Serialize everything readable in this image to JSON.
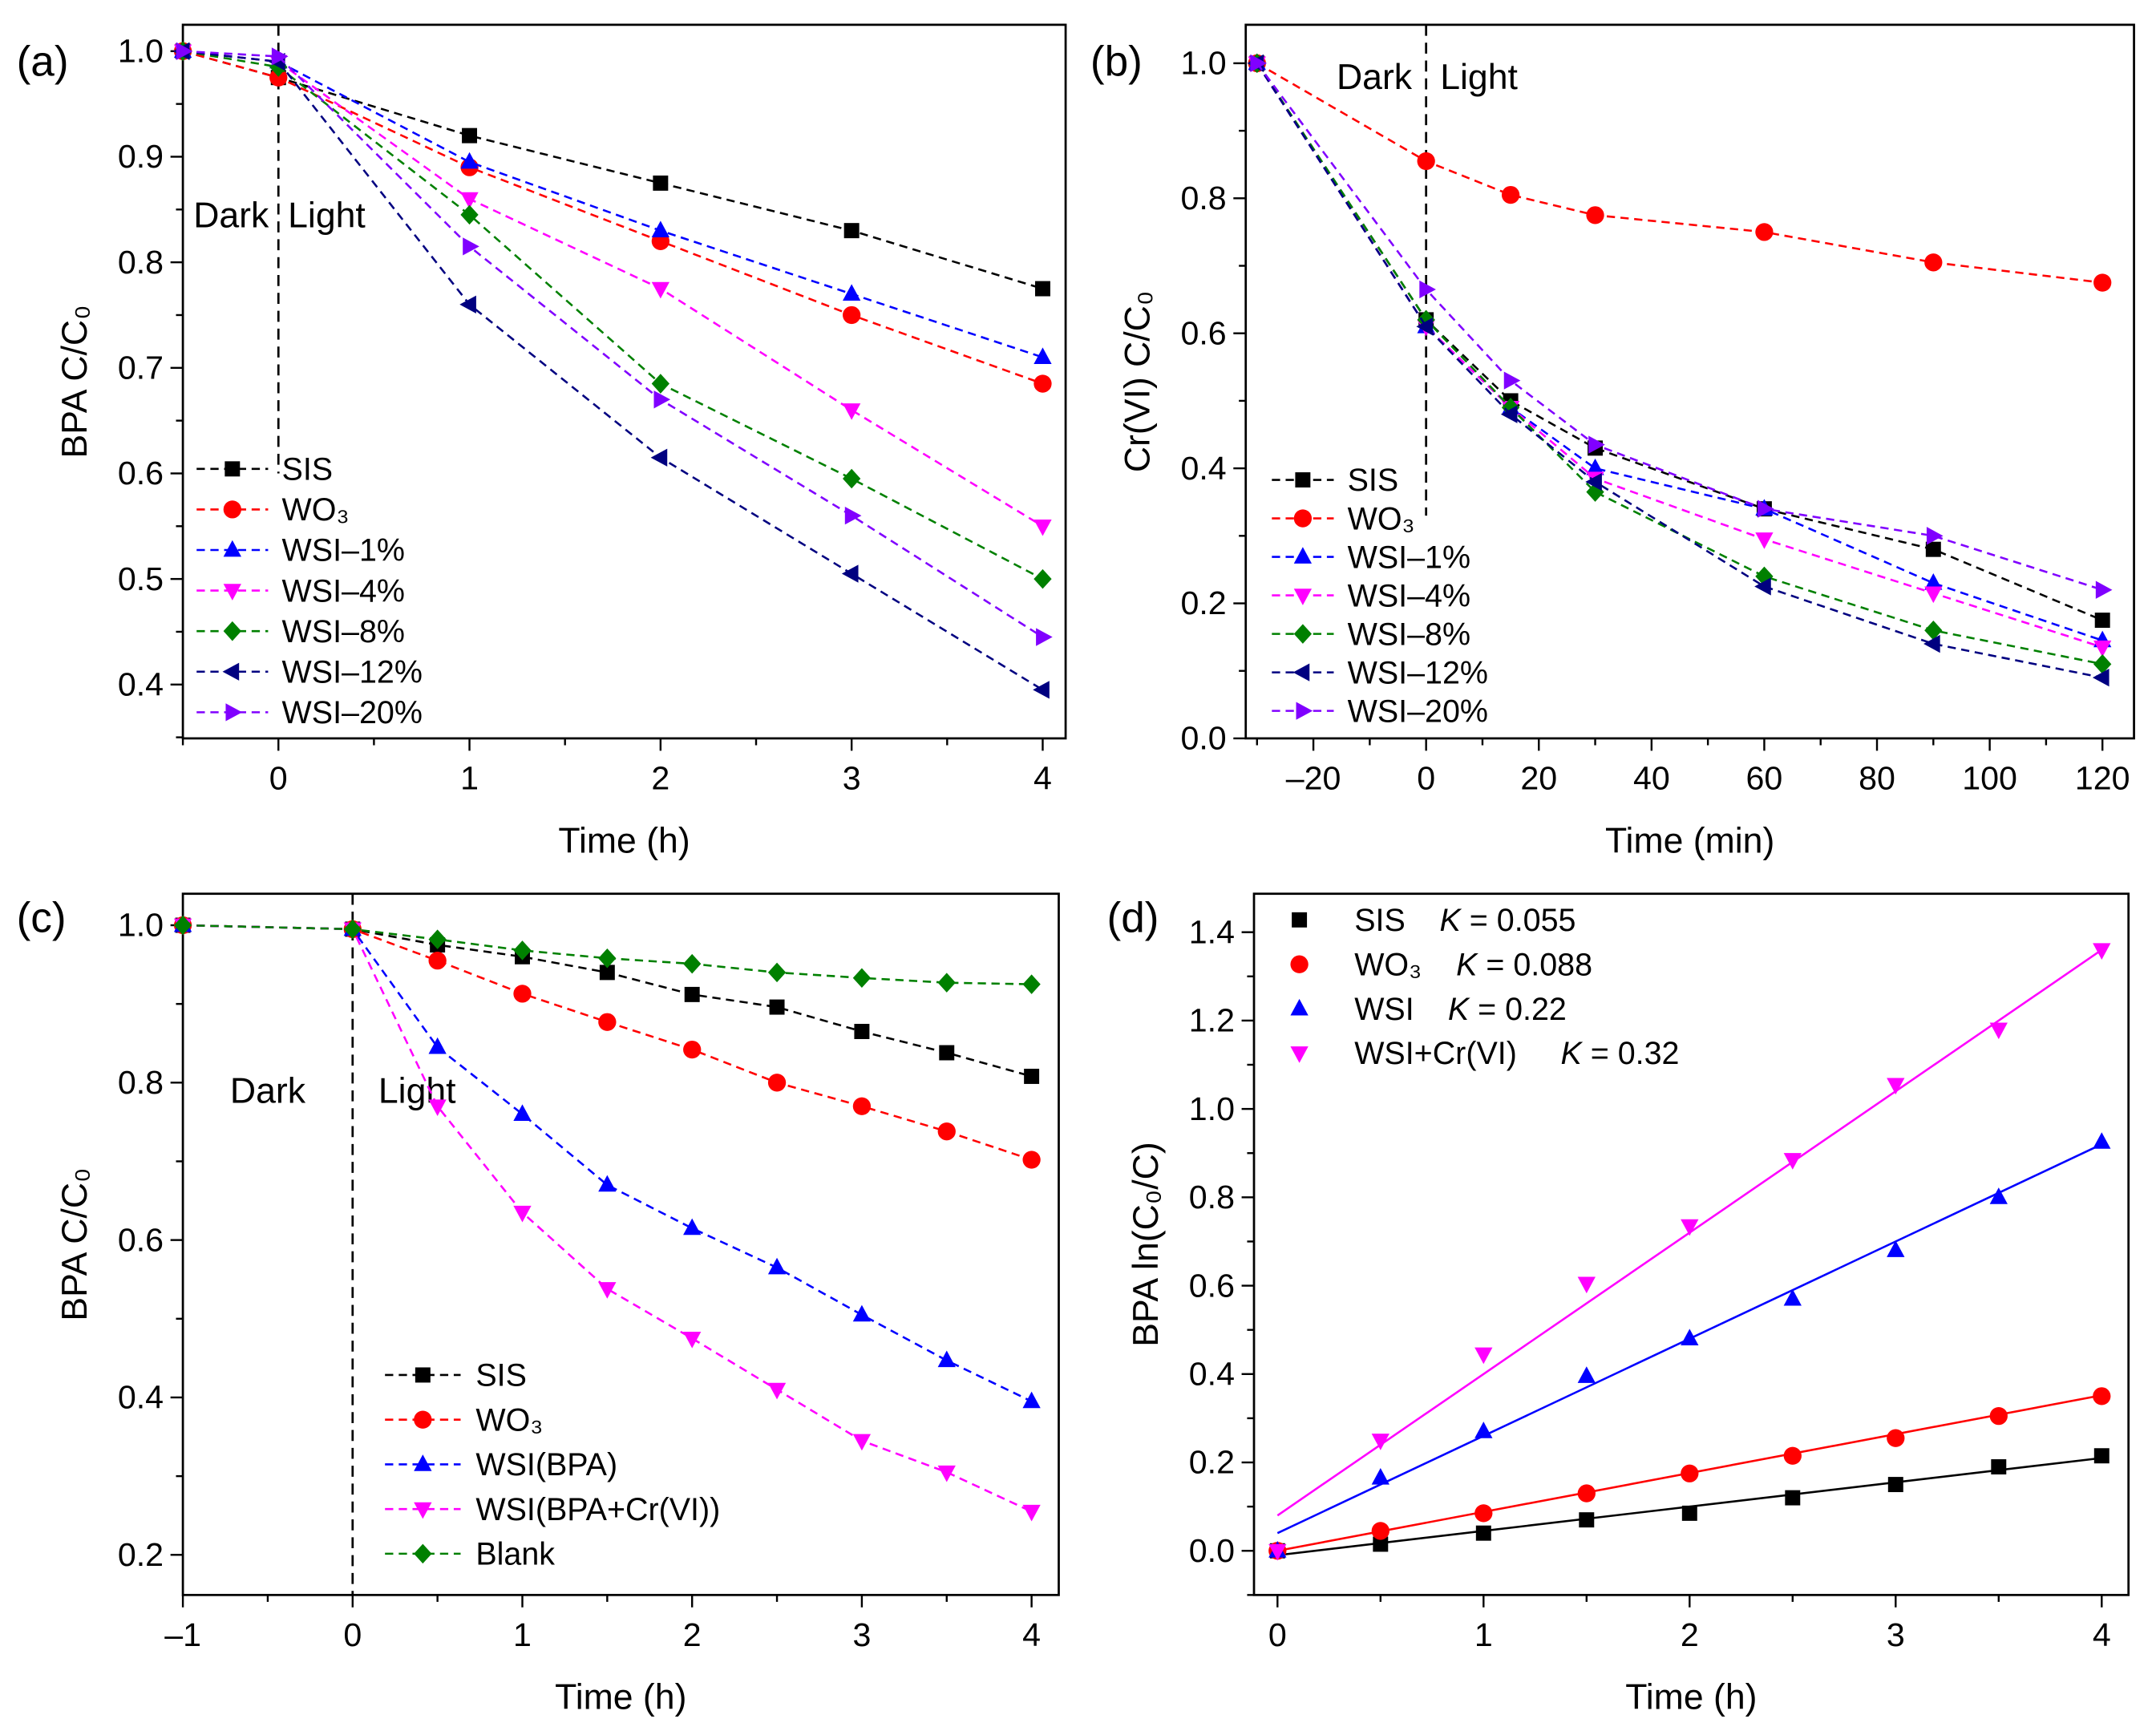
{
  "chart_data": [
    {
      "panel": "(a)",
      "type": "line",
      "xlabel": "Time (h)",
      "ylabel": "BPA C/C₀",
      "xlim": [
        -0.5,
        4.12
      ],
      "ylim": [
        0.349,
        1.025
      ],
      "xticks": [
        0,
        1,
        2,
        3,
        4
      ],
      "xminor": 0.5,
      "yticks": [
        0.4,
        0.5,
        0.6,
        0.7,
        0.8,
        0.9,
        1.0
      ],
      "yminor": 0.05,
      "ydecimals": 1,
      "legend": "bottom-left",
      "legend_style": "dashed",
      "divider": {
        "x": 0,
        "from_y": 1.025,
        "to_y": 0.6
      },
      "annotations": [
        {
          "text": "Dark",
          "x": -0.05,
          "y": 0.845,
          "anchor": "end"
        },
        {
          "text": "Light",
          "x": 0.05,
          "y": 0.845,
          "anchor": "start"
        }
      ],
      "x": [
        -0.5,
        0,
        1,
        2,
        3,
        4
      ],
      "series": [
        {
          "name": "SIS",
          "color": "#000000",
          "marker": "square",
          "values": [
            1.0,
            0.975,
            0.92,
            0.875,
            0.83,
            0.775
          ]
        },
        {
          "name": "WO₃",
          "color": "#ff0000",
          "marker": "circle",
          "values": [
            1.0,
            0.975,
            0.89,
            0.82,
            0.75,
            0.685
          ]
        },
        {
          "name": "WSI–1%",
          "color": "#0000ff",
          "marker": "triangle-up",
          "values": [
            1.0,
            0.99,
            0.895,
            0.83,
            0.77,
            0.71
          ]
        },
        {
          "name": "WSI–4%",
          "color": "#ff00ff",
          "marker": "triangle-down",
          "values": [
            1.0,
            0.99,
            0.86,
            0.775,
            0.66,
            0.55
          ]
        },
        {
          "name": "WSI–8%",
          "color": "#008000",
          "marker": "diamond",
          "values": [
            1.0,
            0.985,
            0.845,
            0.685,
            0.595,
            0.5
          ]
        },
        {
          "name": "WSI–12%",
          "color": "#000080",
          "marker": "triangle-left",
          "values": [
            1.0,
            0.99,
            0.76,
            0.615,
            0.505,
            0.395
          ]
        },
        {
          "name": "WSI–20%",
          "color": "#8000ff",
          "marker": "triangle-right",
          "values": [
            1.0,
            0.995,
            0.815,
            0.67,
            0.56,
            0.445
          ]
        }
      ]
    },
    {
      "panel": "(b)",
      "type": "line",
      "xlabel": "Time (min)",
      "ylabel": "Cr(VI) C/C₀",
      "xlim": [
        -32,
        125.6
      ],
      "ylim": [
        0,
        1.057
      ],
      "xticks": [
        -20,
        0,
        20,
        40,
        60,
        80,
        100,
        120
      ],
      "xminor": 10,
      "yticks": [
        0.0,
        0.2,
        0.4,
        0.6,
        0.8,
        1.0
      ],
      "yminor": 0.1,
      "ydecimals": 1,
      "legend": "bottom-left",
      "legend_style": "dashed",
      "divider": {
        "x": 0,
        "from_y": 1.057,
        "to_y": 0.33
      },
      "annotations": [
        {
          "text": "Dark",
          "x": -2.5,
          "y": 0.98,
          "anchor": "end"
        },
        {
          "text": "Light",
          "x": 2.5,
          "y": 0.98,
          "anchor": "start"
        }
      ],
      "x": [
        -30,
        0,
        15,
        30,
        60,
        90,
        120
      ],
      "series": [
        {
          "name": "SIS",
          "color": "#000000",
          "marker": "square",
          "values": [
            1.0,
            0.62,
            0.5,
            0.43,
            0.34,
            0.28,
            0.175
          ]
        },
        {
          "name": "WO₃",
          "color": "#ff0000",
          "marker": "circle",
          "values": [
            1.0,
            0.855,
            0.805,
            0.775,
            0.75,
            0.705,
            0.675
          ]
        },
        {
          "name": "WSI–1%",
          "color": "#0000ff",
          "marker": "triangle-up",
          "values": [
            1.0,
            0.61,
            0.49,
            0.4,
            0.34,
            0.23,
            0.145
          ]
        },
        {
          "name": "WSI–4%",
          "color": "#ff00ff",
          "marker": "triangle-down",
          "values": [
            1.0,
            0.61,
            0.49,
            0.385,
            0.295,
            0.215,
            0.135
          ]
        },
        {
          "name": "WSI–8%",
          "color": "#008000",
          "marker": "diamond",
          "values": [
            1.0,
            0.62,
            0.49,
            0.365,
            0.24,
            0.16,
            0.11
          ]
        },
        {
          "name": "WSI–12%",
          "color": "#000080",
          "marker": "triangle-left",
          "values": [
            1.0,
            0.61,
            0.48,
            0.38,
            0.225,
            0.14,
            0.09
          ]
        },
        {
          "name": "WSI–20%",
          "color": "#8000ff",
          "marker": "triangle-right",
          "values": [
            1.0,
            0.665,
            0.53,
            0.435,
            0.34,
            0.3,
            0.22
          ]
        }
      ]
    },
    {
      "panel": "(c)",
      "type": "line",
      "xlabel": "Time (h)",
      "ylabel": "BPA  C/C₀",
      "xlim": [
        -1,
        4.16
      ],
      "ylim": [
        0.149,
        1.04
      ],
      "xticks": [
        -1,
        0,
        1,
        2,
        3,
        4
      ],
      "xtick_labels": [
        "–1",
        "0",
        "1",
        "2",
        "3",
        "4"
      ],
      "xminor": 0.5,
      "yticks": [
        0.2,
        0.4,
        0.6,
        0.8,
        1.0
      ],
      "yminor": 0.1,
      "ydecimals": 1,
      "legend": "bottom-center",
      "legend_style": "dashed",
      "divider": {
        "x": 0,
        "from_y": 1.04,
        "to_y": 0.149
      },
      "annotations": [
        {
          "text": "Dark",
          "x": -0.5,
          "y": 0.79,
          "anchor": "middle"
        },
        {
          "text": "Light",
          "x": 0.38,
          "y": 0.79,
          "anchor": "middle"
        }
      ],
      "x": [
        -1,
        0,
        0.5,
        1,
        1.5,
        2,
        2.5,
        3,
        3.5,
        4
      ],
      "series": [
        {
          "name": "SIS",
          "color": "#000000",
          "marker": "square",
          "values": [
            1.0,
            0.995,
            0.975,
            0.96,
            0.94,
            0.912,
            0.896,
            0.865,
            0.838,
            0.808
          ]
        },
        {
          "name": "WO₃",
          "color": "#ff0000",
          "marker": "circle",
          "values": [
            1.0,
            0.995,
            0.955,
            0.913,
            0.877,
            0.842,
            0.8,
            0.77,
            0.738,
            0.702
          ]
        },
        {
          "name": "WSI(BPA)",
          "color": "#0000ff",
          "marker": "triangle-up",
          "values": [
            1.0,
            0.995,
            0.845,
            0.76,
            0.67,
            0.615,
            0.565,
            0.505,
            0.447,
            0.395
          ]
        },
        {
          "name": "WSI(BPA+Cr(VI))",
          "color": "#ff00ff",
          "marker": "triangle-down",
          "values": [
            1.0,
            0.995,
            0.77,
            0.635,
            0.538,
            0.475,
            0.41,
            0.345,
            0.305,
            0.255
          ]
        },
        {
          "name": "Blank",
          "color": "#008000",
          "marker": "diamond",
          "values": [
            1.0,
            0.995,
            0.982,
            0.968,
            0.958,
            0.951,
            0.94,
            0.933,
            0.927,
            0.925
          ]
        }
      ]
    },
    {
      "panel": "(d)",
      "type": "scatter",
      "xlabel": "Time (h)",
      "ylabel": "BPA ln(C₀/C)",
      "xlim": [
        -0.114,
        4.13
      ],
      "ylim": [
        -0.1,
        1.487
      ],
      "xticks": [
        0,
        1,
        2,
        3,
        4
      ],
      "xminor": 0.5,
      "yticks": [
        0.0,
        0.2,
        0.4,
        0.6,
        0.8,
        1.0,
        1.2,
        1.4
      ],
      "yminor": 0.1,
      "ydecimals": 1,
      "legend": "top-left",
      "legend_style": "marker",
      "x": [
        0,
        0.5,
        1,
        1.5,
        2,
        2.5,
        3,
        3.5,
        4
      ],
      "series": [
        {
          "name": "SIS",
          "k_label": "K = 0.055",
          "color": "#000000",
          "marker": "square",
          "fit": {
            "slope": 0.055,
            "intercept": -0.01
          },
          "values": [
            0,
            0.015,
            0.04,
            0.07,
            0.085,
            0.12,
            0.15,
            0.19,
            0.215
          ]
        },
        {
          "name": "WO₃",
          "k_label": "K = 0.088",
          "color": "#ff0000",
          "marker": "circle",
          "fit": {
            "slope": 0.088,
            "intercept": 0.0
          },
          "values": [
            0,
            0.045,
            0.085,
            0.13,
            0.175,
            0.215,
            0.255,
            0.305,
            0.35
          ]
        },
        {
          "name": "WSI",
          "k_label": "K = 0.22",
          "color": "#0000ff",
          "marker": "triangle-up",
          "fit": {
            "slope": 0.22,
            "intercept": 0.04
          },
          "values": [
            0,
            0.165,
            0.27,
            0.395,
            0.48,
            0.57,
            0.68,
            0.8,
            0.925
          ]
        },
        {
          "name": "WSI+Cr(VI)",
          "k_label": "K = 0.32",
          "color": "#ff00ff",
          "marker": "triangle-down",
          "fit": {
            "slope": 0.32,
            "intercept": 0.08
          },
          "values": [
            0,
            0.25,
            0.445,
            0.605,
            0.735,
            0.885,
            1.055,
            1.18,
            1.36
          ]
        }
      ]
    }
  ]
}
